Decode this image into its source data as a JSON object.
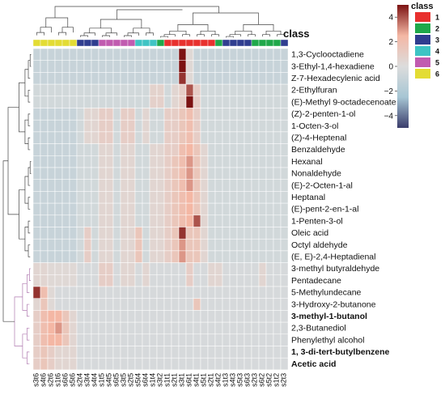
{
  "chart_data": {
    "type": "heatmap",
    "annotation_title": "class",
    "columns": [
      "s3t6",
      "s4t6",
      "s2t6",
      "s1t6",
      "s6t6",
      "s5t6",
      "s2t4",
      "s3t4",
      "s4t4",
      "s1t5",
      "s4t5",
      "s6t5",
      "s3t5",
      "s2t5",
      "s5t4",
      "s6t4",
      "s1t4",
      "s3t2",
      "s1t1",
      "s2t1",
      "s3t1",
      "s6t1",
      "s4t1",
      "s5t1",
      "s2t1",
      "s4t2",
      "s1t3",
      "s4t3",
      "s5t3",
      "s6t3",
      "s2t3",
      "s6t2",
      "s5t2",
      "s1t2",
      "s2t3"
    ],
    "column_classes": [
      6,
      6,
      6,
      6,
      6,
      6,
      3,
      3,
      3,
      5,
      5,
      5,
      5,
      5,
      4,
      4,
      4,
      2,
      1,
      1,
      1,
      1,
      1,
      1,
      1,
      2,
      3,
      3,
      3,
      3,
      2,
      2,
      2,
      2,
      3
    ],
    "rows": [
      "1,3-Cyclooctadiene",
      "3-Ethyl-1,4-hexadiene",
      "Z-7-Hexadecylenic acid",
      "2-Ethylfuran",
      "(E)-Methyl 9-octadecenoate",
      "(Z)-2-penten-1-ol",
      "1-Octen-3-ol",
      "(Z)-4-Heptenal",
      "Benzaldehyde",
      "Hexanal",
      "Nonaldehyde",
      "(E)-2-Octen-1-al",
      "Heptanal",
      "(E)-pent-2-en-1-al",
      "1-Penten-3-ol",
      "Oleic acid",
      "Octyl aldehyde",
      "(E, E)-2,4-Heptadienal",
      "3-methyl butyraldehyde",
      "Pentadecane",
      "5-Methylundecane",
      "3-Hydroxy-2-butanone",
      "3-methyl-1-butanol",
      "2,3-Butanediol",
      "Phenylethyl alcohol",
      "1, 3-di-tert-butylbenzene",
      "Acetic acid"
    ],
    "bold_rows": [
      "3-methyl-1-butanol",
      "1, 3-di-tert-butylbenzene",
      "Acetic acid"
    ],
    "color_scale": {
      "min": -5,
      "max": 5,
      "ticks": [
        4,
        2,
        0,
        -2,
        -4
      ],
      "colors": [
        "#3a3c6b",
        "#a7c6d4",
        "#dcdcdc",
        "#f4b7a4",
        "#7c1212"
      ]
    },
    "legend": {
      "title": "class",
      "entries": [
        {
          "label": "1",
          "color": "#e8302e"
        },
        {
          "label": "2",
          "color": "#1fa84a"
        },
        {
          "label": "3",
          "color": "#2f3d8f"
        },
        {
          "label": "4",
          "color": "#3ec4c4"
        },
        {
          "label": "5",
          "color": "#c15bb0"
        },
        {
          "label": "6",
          "color": "#e3dc34"
        }
      ]
    },
    "values": [
      [
        -1,
        -1,
        -1,
        -1,
        -1,
        -1,
        -1,
        -1,
        -1,
        -1,
        -1,
        -1,
        -1,
        -1,
        -1,
        -1,
        -1,
        -1,
        -1,
        -1,
        5,
        0.3,
        -1,
        -1,
        -1,
        -1,
        -1,
        -1,
        -1,
        -1,
        -1,
        -1,
        -1,
        -1,
        -1
      ],
      [
        -1,
        -1,
        -1,
        -1,
        -1,
        -1,
        -1,
        -1,
        -1,
        -1,
        -1,
        -1,
        -1,
        -1,
        -1,
        -1,
        -1,
        -1,
        -1,
        -1,
        5,
        0.3,
        -1,
        -1,
        -1,
        -1,
        -1,
        -1,
        -1,
        -1,
        -1,
        -1,
        -1,
        -1,
        -1
      ],
      [
        -1,
        -1,
        -1,
        -1,
        -1,
        -1,
        -1,
        -1,
        -1,
        -1,
        -1,
        -1,
        -1,
        -1,
        -1,
        -1,
        -1,
        -1,
        -1,
        -1,
        4.5,
        0.3,
        -1,
        -1,
        -1,
        -1,
        -1,
        -1,
        -1,
        -1,
        -1,
        -1,
        -1,
        -1,
        -1
      ],
      [
        -0.5,
        -0.5,
        -0.5,
        -0.5,
        -0.5,
        -0.5,
        -0.5,
        -0.5,
        -0.5,
        -0.5,
        -0.5,
        -0.5,
        -0.5,
        -0.5,
        -0.5,
        -0.5,
        0.7,
        0.7,
        -0.5,
        0.5,
        1,
        4,
        1,
        -0.5,
        -0.5,
        -0.5,
        -0.5,
        -0.5,
        -0.5,
        -0.5,
        -0.5,
        -0.5,
        -0.5,
        -0.5,
        -0.5
      ],
      [
        -0.5,
        -0.5,
        -0.5,
        -0.5,
        -0.5,
        -0.5,
        -0.5,
        -0.5,
        -0.5,
        -0.5,
        -0.5,
        -0.5,
        -0.5,
        -0.5,
        -0.5,
        -0.5,
        0.8,
        0.8,
        -0.5,
        0.5,
        1,
        5,
        1,
        -0.5,
        -0.5,
        -0.5,
        -0.5,
        -0.5,
        -0.5,
        -0.5,
        -0.5,
        -0.5,
        -0.5,
        -0.5,
        -0.5
      ],
      [
        -1,
        -1,
        -1,
        -1,
        -1,
        -1,
        -0.5,
        0.5,
        0.5,
        1,
        1,
        -0.5,
        1,
        1,
        -0.5,
        0.5,
        -0.5,
        -0.5,
        1,
        1,
        1.5,
        2,
        1,
        -0.5,
        -0.5,
        -0.5,
        -0.5,
        -0.5,
        -0.5,
        -0.5,
        -0.5,
        -0.5,
        -0.5,
        -0.5,
        -0.5
      ],
      [
        -1,
        -1,
        -1,
        -1,
        -1,
        -1,
        -0.5,
        0.5,
        0.5,
        1,
        1,
        -0.5,
        1,
        1,
        -0.5,
        0.5,
        -0.5,
        -0.5,
        1,
        1,
        1.5,
        2,
        1,
        -0.5,
        -0.5,
        -0.5,
        -0.5,
        -0.5,
        -0.5,
        -0.5,
        -0.5,
        -0.5,
        -0.5,
        -0.5,
        -0.5
      ],
      [
        -1,
        -1,
        -1,
        -1,
        -1,
        -1,
        -0.5,
        0.5,
        0.5,
        1,
        1,
        -0.5,
        1,
        1,
        -0.5,
        0.5,
        -0.5,
        -0.5,
        1,
        1,
        1.5,
        2,
        1,
        -0.5,
        -0.5,
        -0.5,
        -0.5,
        -0.5,
        -0.5,
        -0.5,
        -0.5,
        -0.5,
        -0.5,
        -0.5,
        -0.5
      ],
      [
        -1,
        -1,
        -1,
        -1,
        -1,
        -1,
        -0.5,
        -0.5,
        -0.5,
        0.5,
        0.5,
        -0.5,
        0.5,
        0.5,
        -0.5,
        -0.5,
        0.5,
        0.5,
        1,
        1,
        2,
        2.5,
        1.5,
        0.5,
        -0.5,
        -0.5,
        -0.5,
        -0.5,
        -0.5,
        -0.5,
        -0.5,
        -0.5,
        -0.5,
        -0.5,
        -0.5
      ],
      [
        -1,
        -1,
        -1,
        -1,
        -1,
        -1,
        -0.5,
        -0.5,
        -0.5,
        0.5,
        0.5,
        -0.5,
        0.5,
        0.5,
        -0.5,
        -0.5,
        0.5,
        0.5,
        1,
        1.5,
        2,
        3,
        1.5,
        0.5,
        -0.5,
        -0.5,
        -0.5,
        -0.5,
        -0.5,
        -0.5,
        -0.5,
        -0.5,
        -0.5,
        -0.5,
        -0.5
      ],
      [
        -1,
        -1,
        -1,
        -1,
        -1,
        -1,
        -0.5,
        -0.5,
        -0.5,
        0.5,
        0.5,
        -0.5,
        0.5,
        0.5,
        -0.5,
        -0.5,
        0.5,
        0.5,
        1,
        1.5,
        2,
        3,
        1.5,
        0.5,
        -0.5,
        -0.5,
        -0.5,
        -0.5,
        -0.5,
        -0.5,
        -0.5,
        -0.5,
        -0.5,
        -0.5,
        -0.5
      ],
      [
        -1,
        -1,
        -1,
        -1,
        -1,
        -1,
        -0.5,
        -0.5,
        -0.5,
        0.5,
        0.5,
        -0.5,
        0.5,
        0.5,
        -0.5,
        -0.5,
        0.5,
        0.5,
        1,
        1.5,
        2,
        3,
        1.5,
        0.5,
        -0.5,
        -0.5,
        -0.5,
        -0.5,
        -0.5,
        -0.5,
        -0.5,
        -0.5,
        -0.5,
        -0.5,
        -0.5
      ],
      [
        -1,
        -1,
        -1,
        -1,
        -1,
        -1,
        -0.5,
        -0.5,
        -0.5,
        0.5,
        0.5,
        -0.5,
        0.5,
        0.5,
        -0.5,
        -0.5,
        0.5,
        0.5,
        1,
        1.5,
        2,
        2.5,
        1.5,
        0.5,
        -0.5,
        -0.5,
        -0.5,
        -0.5,
        -0.5,
        -0.5,
        -0.5,
        -0.5,
        -0.5,
        -0.5,
        -0.5
      ],
      [
        -1,
        -1,
        -1,
        -1,
        -1,
        -1,
        -0.5,
        -0.5,
        -0.5,
        0.5,
        0.5,
        -0.5,
        0.5,
        0.5,
        -0.5,
        -0.5,
        0.5,
        0.5,
        1,
        1.5,
        2,
        2.5,
        1.5,
        0.5,
        -0.5,
        -0.5,
        -0.5,
        -0.5,
        -0.5,
        -0.5,
        -0.5,
        -0.5,
        -0.5,
        -0.5,
        -0.5
      ],
      [
        -1,
        -1,
        -1,
        -1,
        -1,
        -1,
        -0.5,
        -0.5,
        -0.5,
        0.5,
        0.5,
        -0.5,
        0.5,
        0.5,
        -0.5,
        -0.5,
        0.5,
        0.5,
        1,
        1.5,
        2,
        2.5,
        4,
        0.5,
        -0.5,
        -0.5,
        -0.5,
        -0.5,
        -0.5,
        -0.5,
        -0.5,
        -0.5,
        -0.5,
        -0.5,
        -0.5
      ],
      [
        -1,
        -1,
        -1,
        -1,
        -1,
        -1,
        -0.5,
        1,
        -0.5,
        0.5,
        0.5,
        -0.5,
        0.5,
        0.5,
        1.5,
        -0.5,
        0.5,
        0.5,
        1,
        1.5,
        4.5,
        1.5,
        1.5,
        0.5,
        -0.5,
        -0.5,
        -0.5,
        -0.5,
        -0.5,
        -0.5,
        -0.5,
        -0.5,
        -0.5,
        -0.5,
        -0.5
      ],
      [
        -1,
        -1,
        -1,
        -1,
        -1,
        -1,
        -0.5,
        1,
        -0.5,
        0.5,
        0.5,
        -0.5,
        0.5,
        0.5,
        1.5,
        -0.5,
        0.5,
        0.5,
        1,
        1.5,
        3,
        1.5,
        1.5,
        0.5,
        -0.5,
        -0.5,
        -0.5,
        -0.5,
        -0.5,
        -0.5,
        -0.5,
        -0.5,
        -0.5,
        -0.5,
        -0.5
      ],
      [
        -1,
        -1,
        -1,
        -1,
        -1,
        -1,
        -0.5,
        1,
        -0.5,
        0.5,
        0.5,
        -0.5,
        0.5,
        0.5,
        1.5,
        -0.5,
        0.5,
        0.5,
        1,
        1.5,
        3,
        1.5,
        1.5,
        0.5,
        -0.5,
        -0.5,
        -0.5,
        -0.5,
        -0.5,
        -0.5,
        -0.5,
        -0.5,
        -0.5,
        -0.5,
        -0.5
      ],
      [
        0.5,
        0.5,
        0.3,
        0.3,
        0.3,
        0.3,
        -0.3,
        -0.3,
        -0.3,
        1,
        1,
        -0.3,
        0.5,
        0.5,
        -0.3,
        0.5,
        -0.3,
        -0.3,
        -0.3,
        -0.3,
        -0.3,
        1,
        -0.3,
        -0.3,
        0.5,
        0.5,
        -0.3,
        -0.3,
        -0.3,
        -0.3,
        -0.3,
        0.5,
        -0.3,
        -0.3,
        -0.3
      ],
      [
        0.5,
        0.5,
        0.3,
        0.3,
        0.3,
        0.3,
        -0.3,
        -0.3,
        -0.3,
        1,
        1,
        -0.3,
        0.5,
        0.5,
        -0.3,
        0.5,
        -0.3,
        -0.3,
        -0.3,
        -0.3,
        -0.3,
        1,
        -0.3,
        -0.3,
        0.5,
        0.5,
        -0.3,
        -0.3,
        -0.3,
        -0.3,
        -0.3,
        0.5,
        -0.3,
        -0.3,
        -0.3
      ],
      [
        4.5,
        2,
        0.3,
        -0.3,
        -0.3,
        -0.3,
        -0.3,
        -0.3,
        -0.3,
        -0.3,
        -0.3,
        -0.3,
        -0.3,
        -0.3,
        -0.3,
        -0.3,
        -0.3,
        -0.3,
        -0.3,
        -0.3,
        -0.3,
        -0.3,
        -0.3,
        -0.3,
        -0.3,
        -0.3,
        -0.3,
        -0.3,
        -0.3,
        -0.3,
        -0.3,
        -0.3,
        -0.3,
        -0.3,
        -0.3
      ],
      [
        0.5,
        1.5,
        0.3,
        -0.3,
        -0.3,
        -0.3,
        -0.3,
        -0.3,
        -0.3,
        -0.3,
        -0.3,
        -0.3,
        -0.3,
        -0.3,
        -0.3,
        -0.3,
        -0.3,
        -0.3,
        -0.3,
        -0.3,
        -0.3,
        -0.3,
        1.5,
        -0.3,
        -0.3,
        -0.3,
        -0.3,
        -0.3,
        -0.3,
        -0.3,
        -0.3,
        -0.3,
        -0.3,
        -0.3,
        -0.3
      ],
      [
        1,
        2,
        2.5,
        2.5,
        1.5,
        0.5,
        -0.3,
        -0.3,
        -0.3,
        -0.3,
        -0.3,
        -0.3,
        -0.3,
        -0.3,
        -0.3,
        -0.3,
        -0.3,
        -0.3,
        -0.3,
        -0.3,
        -0.3,
        -0.3,
        -0.3,
        -0.3,
        -0.3,
        -0.3,
        -0.3,
        -0.3,
        -0.3,
        -0.3,
        -0.3,
        -0.3,
        -0.3,
        -0.3,
        -0.3
      ],
      [
        1,
        2,
        2.5,
        3,
        1.5,
        0.5,
        -0.3,
        -0.3,
        -0.3,
        -0.3,
        -0.3,
        -0.3,
        -0.3,
        -0.3,
        -0.3,
        -0.3,
        -0.3,
        -0.3,
        -0.3,
        -0.3,
        -0.3,
        -0.3,
        -0.3,
        -0.3,
        -0.3,
        -0.3,
        -0.3,
        -0.3,
        -0.3,
        -0.3,
        -0.3,
        -0.3,
        -0.3,
        -0.3,
        -0.3
      ],
      [
        1,
        2,
        2.5,
        2.5,
        1.5,
        0.5,
        -0.3,
        -0.3,
        -0.3,
        -0.3,
        -0.3,
        -0.3,
        -0.3,
        -0.3,
        -0.3,
        -0.3,
        -0.3,
        -0.3,
        -0.3,
        -0.3,
        -0.3,
        -0.3,
        -0.3,
        -0.3,
        -0.3,
        -0.3,
        -0.3,
        -0.3,
        -0.3,
        -0.3,
        -0.3,
        -0.3,
        -0.3,
        -0.3,
        -0.3
      ],
      [
        1,
        1.5,
        1,
        0.5,
        0.5,
        0.5,
        -0.3,
        -0.3,
        -0.3,
        -0.3,
        -0.3,
        -0.3,
        -0.3,
        -0.3,
        -0.3,
        -0.3,
        -0.3,
        -0.3,
        -0.3,
        -0.3,
        -0.3,
        -0.3,
        -0.3,
        -0.3,
        -0.3,
        -0.3,
        -0.3,
        -0.3,
        -0.3,
        -0.3,
        -0.3,
        -0.3,
        -0.3,
        -0.3,
        -0.3
      ],
      [
        1,
        1.5,
        1,
        0.5,
        0.5,
        0.5,
        -0.3,
        -0.3,
        -0.3,
        -0.3,
        -0.3,
        -0.3,
        -0.3,
        -0.3,
        -0.3,
        -0.3,
        -0.3,
        -0.3,
        -0.3,
        -0.3,
        -0.3,
        -0.3,
        -0.3,
        -0.3,
        -0.3,
        -0.3,
        -0.3,
        -0.3,
        -0.3,
        -0.3,
        -0.3,
        -0.3,
        -0.3,
        -0.3,
        -0.3
      ]
    ]
  }
}
